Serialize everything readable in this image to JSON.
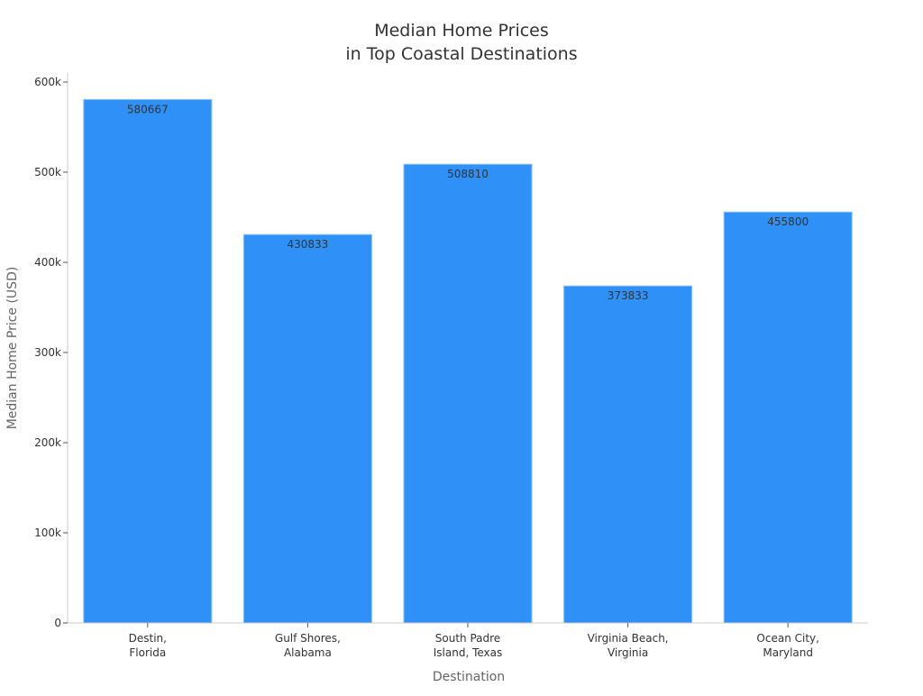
{
  "chart_data": {
    "type": "bar",
    "title": [
      "Median Home Prices",
      "in Top Coastal Destinations"
    ],
    "xlabel": "Destination",
    "ylabel": "Median Home Price (USD)",
    "categories": [
      [
        "Destin,",
        "Florida"
      ],
      [
        "Gulf Shores,",
        "Alabama"
      ],
      [
        "South Padre",
        "Island, Texas"
      ],
      [
        "Virginia Beach,",
        "Virginia"
      ],
      [
        "Ocean City,",
        "Maryland"
      ]
    ],
    "values": [
      580667,
      430833,
      508810,
      373833,
      455800
    ],
    "data_labels": [
      "580667",
      "430833",
      "508810",
      "373833",
      "455800"
    ],
    "ylim": [
      0,
      610000
    ],
    "yticks": [
      0,
      100000,
      200000,
      300000,
      400000,
      500000,
      600000
    ],
    "ytick_labels": [
      "0",
      "100k",
      "200k",
      "300k",
      "400k",
      "500k",
      "600k"
    ],
    "grid": false,
    "colors": {
      "bar": "#2F91F7",
      "bar_edge": "#8EC2F9",
      "text": "#333333",
      "axis": "#CCCCCC"
    }
  }
}
